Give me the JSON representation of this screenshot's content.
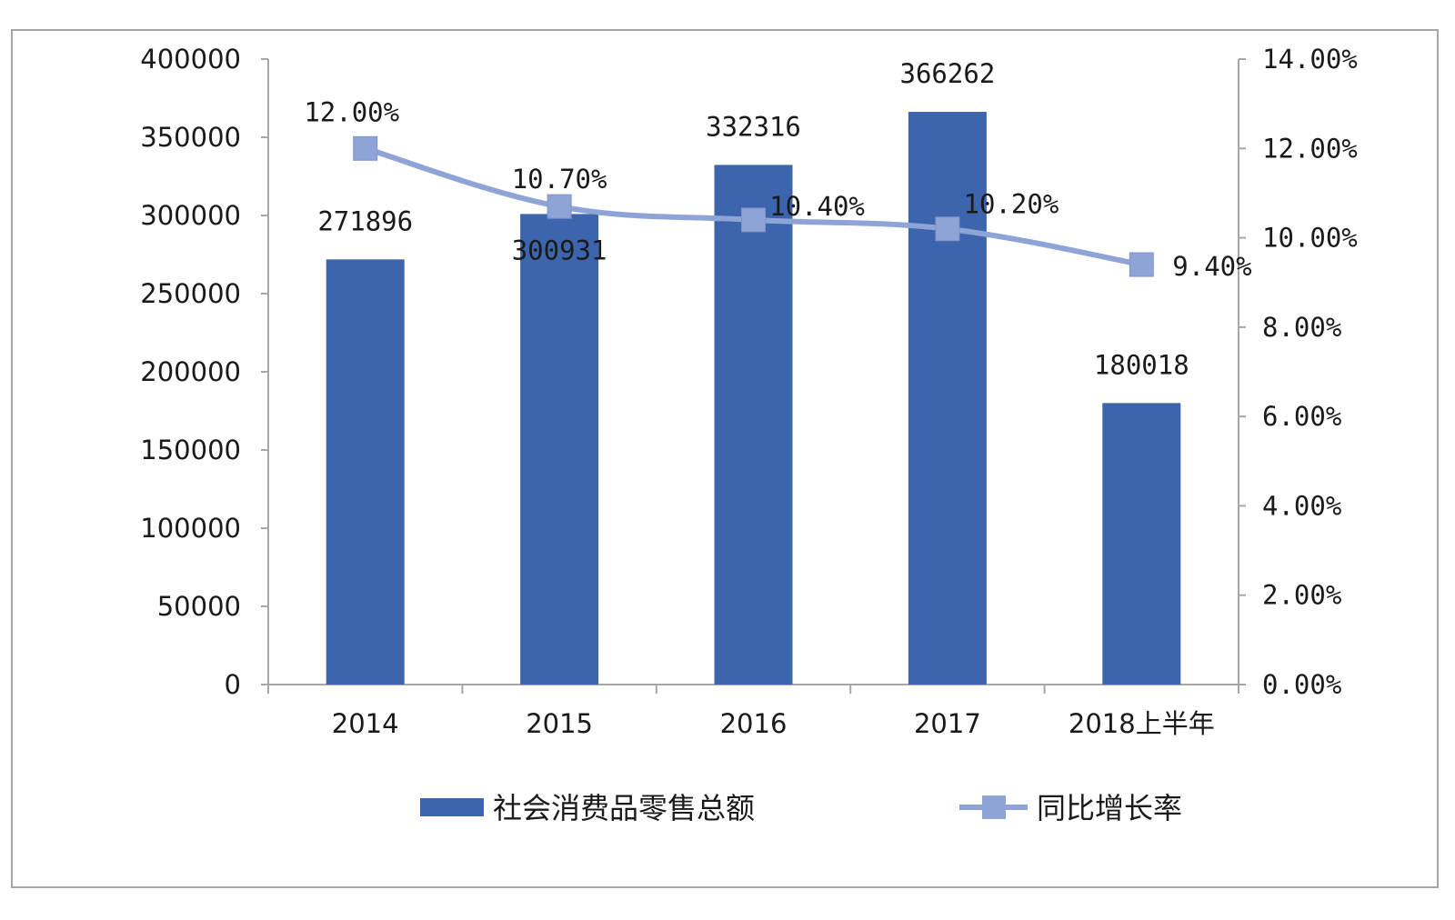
{
  "chart_data": {
    "type": "bar",
    "categories": [
      "2014",
      "2015",
      "2016",
      "2017",
      "2018上半年"
    ],
    "series": [
      {
        "name": "社会消费品零售总额",
        "type": "bar",
        "axis": "left",
        "values": [
          271896,
          300931,
          332316,
          366262,
          180018
        ],
        "labels": [
          "271896",
          "300931",
          "332316",
          "366262",
          "180018"
        ],
        "color": "#3d65ad"
      },
      {
        "name": "同比增长率",
        "type": "line",
        "axis": "right",
        "marker": "square",
        "values": [
          12.0,
          10.7,
          10.4,
          10.2,
          9.4
        ],
        "labels": [
          "12.00%",
          "10.70%",
          "10.40%",
          "10.20%",
          "9.40%"
        ],
        "color": "#8ea3d6"
      }
    ],
    "y_left": {
      "lim": [
        0,
        400000
      ],
      "ticks": [
        "0",
        "50000",
        "100000",
        "150000",
        "200000",
        "250000",
        "300000",
        "350000",
        "400000"
      ]
    },
    "y_right": {
      "lim": [
        0,
        14
      ],
      "ticks": [
        "0.00%",
        "2.00%",
        "4.00%",
        "6.00%",
        "8.00%",
        "10.00%",
        "12.00%",
        "14.00%"
      ]
    },
    "grid": false,
    "legend_position": "bottom"
  }
}
